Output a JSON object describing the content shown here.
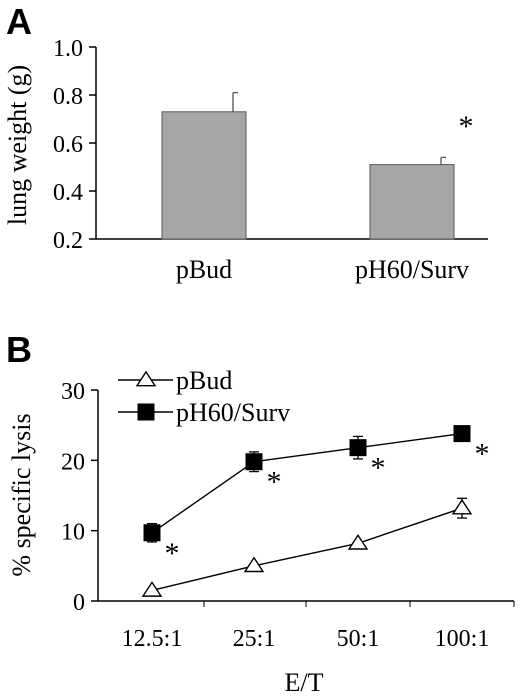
{
  "chart_data": [
    {
      "panel_label": "A",
      "type": "bar",
      "categories": [
        "pBud",
        "pH60/Surv"
      ],
      "values": [
        0.73,
        0.51
      ],
      "errors": [
        0.08,
        0.03
      ],
      "ylabel": "lung weight (g)",
      "ylim": [
        0.2,
        1.0
      ],
      "yticks": [
        "0.2",
        "0.4",
        "0.6",
        "0.8",
        "1.0"
      ],
      "annotations": [
        {
          "category": "pH60/Surv",
          "text": "*"
        }
      ],
      "bar_color": "#a6a6a6"
    },
    {
      "panel_label": "B",
      "type": "line",
      "categories": [
        "12.5:1",
        "25:1",
        "50:1",
        "100:1"
      ],
      "xlabel": "E/T",
      "ylabel": "% specific lysis",
      "ylim": [
        0,
        30
      ],
      "yticks": [
        "0",
        "10",
        "20",
        "30"
      ],
      "legend_position": "top-left",
      "series": [
        {
          "name": "pBud",
          "marker": "open-triangle",
          "values": [
            1.5,
            5.0,
            8.2,
            13.2
          ],
          "errors": [
            0,
            0,
            0,
            1.4
          ]
        },
        {
          "name": "pH60/Surv",
          "marker": "filled-square",
          "values": [
            9.7,
            19.8,
            21.8,
            23.8
          ],
          "errors": [
            1.3,
            1.4,
            1.6,
            0
          ],
          "significance": [
            "*",
            "*",
            "*",
            "*"
          ]
        }
      ]
    }
  ]
}
